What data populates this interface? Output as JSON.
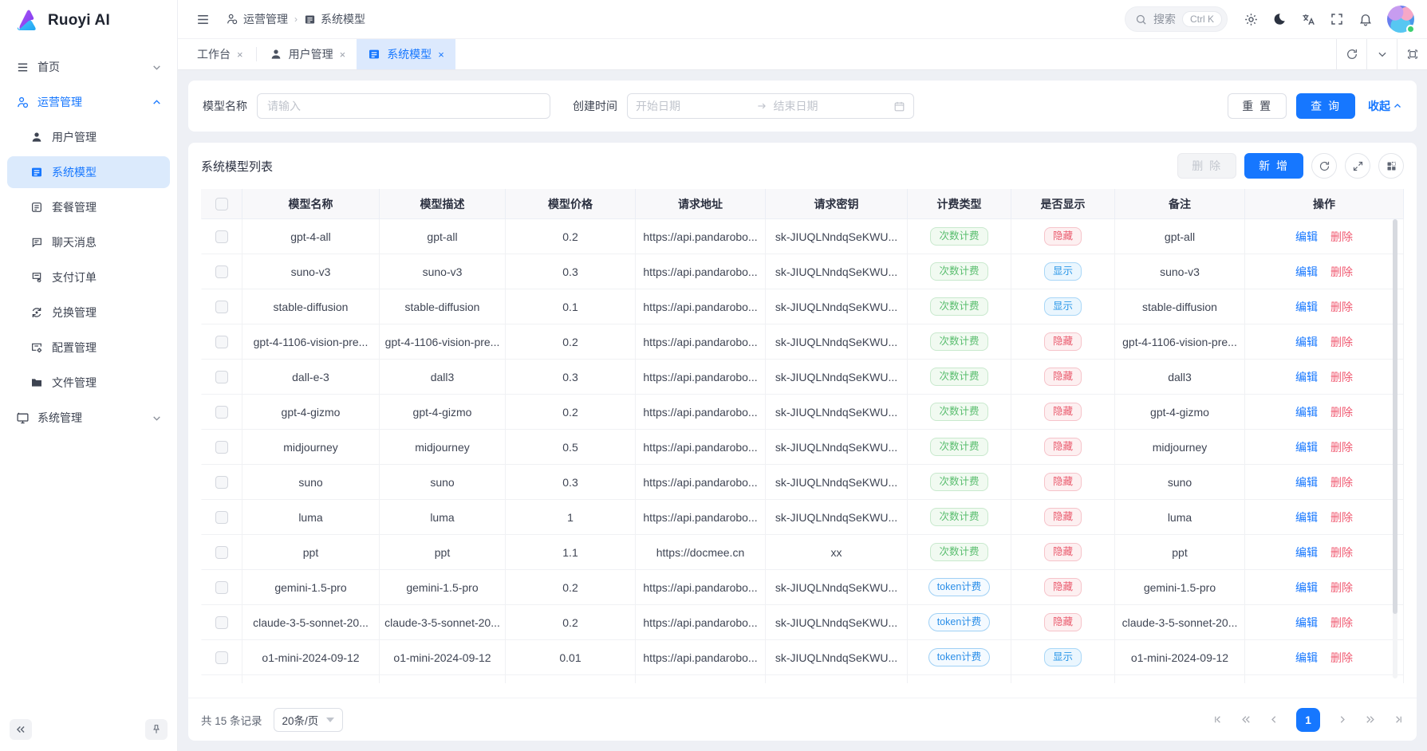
{
  "app": {
    "logo_text": "Ruoyi AI"
  },
  "colors": {
    "primary": "#1677ff",
    "badge_green": "#58bd6d",
    "badge_red": "#ea5b6e",
    "badge_blue": "#2a97e8"
  },
  "header": {
    "breadcrumb": [
      {
        "label": "运营管理",
        "icon": "user-gear-icon"
      },
      {
        "label": "系统模型",
        "icon": "list-icon"
      }
    ],
    "search": {
      "label": "搜索",
      "shortcut": "Ctrl K"
    }
  },
  "tabs": [
    {
      "label": "工作台",
      "icon": null,
      "active": false
    },
    {
      "label": "用户管理",
      "icon": "user-icon",
      "active": false
    },
    {
      "label": "系统模型",
      "icon": "list-icon",
      "active": true
    }
  ],
  "sidebar": {
    "items": [
      {
        "label": "首页",
        "icon": "menu-lines-icon",
        "level": 1,
        "chevron": "down",
        "state": "normal"
      },
      {
        "label": "运营管理",
        "icon": "user-gear-icon",
        "level": 1,
        "chevron": "up",
        "state": "blue"
      },
      {
        "label": "用户管理",
        "icon": "user-icon",
        "level": 2,
        "chevron": null,
        "state": "normal"
      },
      {
        "label": "系统模型",
        "icon": "list-icon",
        "level": 2,
        "chevron": null,
        "state": "active"
      },
      {
        "label": "套餐管理",
        "icon": "package-icon",
        "level": 2,
        "chevron": null,
        "state": "normal"
      },
      {
        "label": "聊天消息",
        "icon": "chat-icon",
        "level": 2,
        "chevron": null,
        "state": "normal"
      },
      {
        "label": "支付订单",
        "icon": "receipt-icon",
        "level": 2,
        "chevron": null,
        "state": "normal"
      },
      {
        "label": "兑换管理",
        "icon": "exchange-icon",
        "level": 2,
        "chevron": null,
        "state": "normal"
      },
      {
        "label": "配置管理",
        "icon": "config-icon",
        "level": 2,
        "chevron": null,
        "state": "normal"
      },
      {
        "label": "文件管理",
        "icon": "folder-icon",
        "level": 2,
        "chevron": null,
        "state": "normal"
      },
      {
        "label": "系统管理",
        "icon": "monitor-icon",
        "level": 1,
        "chevron": "down",
        "state": "normal"
      }
    ]
  },
  "filter": {
    "model_name_label": "模型名称",
    "model_name_placeholder": "请输入",
    "create_time_label": "创建时间",
    "start_placeholder": "开始日期",
    "end_placeholder": "结束日期",
    "reset_label": "重 置",
    "search_label": "查 询",
    "collapse_label": "收起"
  },
  "table": {
    "title": "系统模型列表",
    "delete_button": "删 除",
    "add_button": "新 增",
    "columns": [
      "模型名称",
      "模型描述",
      "模型价格",
      "请求地址",
      "请求密钥",
      "计费类型",
      "是否显示",
      "备注",
      "操作"
    ],
    "edit_label": "编辑",
    "delete_label": "删除",
    "rows": [
      {
        "name": "gpt-4-all",
        "desc": "gpt-all",
        "price": "0.2",
        "url": "https://api.pandarobo...",
        "key": "sk-JIUQLNndqSeKWU...",
        "billing": "次数计费",
        "billing_style": "green",
        "visible": "隐藏",
        "visible_style": "red",
        "remark": "gpt-all"
      },
      {
        "name": "suno-v3",
        "desc": "suno-v3",
        "price": "0.3",
        "url": "https://api.pandarobo...",
        "key": "sk-JIUQLNndqSeKWU...",
        "billing": "次数计费",
        "billing_style": "green",
        "visible": "显示",
        "visible_style": "blue",
        "remark": "suno-v3"
      },
      {
        "name": "stable-diffusion",
        "desc": "stable-diffusion",
        "price": "0.1",
        "url": "https://api.pandarobo...",
        "key": "sk-JIUQLNndqSeKWU...",
        "billing": "次数计费",
        "billing_style": "green",
        "visible": "显示",
        "visible_style": "blue",
        "remark": "stable-diffusion"
      },
      {
        "name": "gpt-4-1106-vision-pre...",
        "desc": "gpt-4-1106-vision-pre...",
        "price": "0.2",
        "url": "https://api.pandarobo...",
        "key": "sk-JIUQLNndqSeKWU...",
        "billing": "次数计费",
        "billing_style": "green",
        "visible": "隐藏",
        "visible_style": "red",
        "remark": "gpt-4-1106-vision-pre..."
      },
      {
        "name": "dall-e-3",
        "desc": "dall3",
        "price": "0.3",
        "url": "https://api.pandarobo...",
        "key": "sk-JIUQLNndqSeKWU...",
        "billing": "次数计费",
        "billing_style": "green",
        "visible": "隐藏",
        "visible_style": "red",
        "remark": "dall3"
      },
      {
        "name": "gpt-4-gizmo",
        "desc": "gpt-4-gizmo",
        "price": "0.2",
        "url": "https://api.pandarobo...",
        "key": "sk-JIUQLNndqSeKWU...",
        "billing": "次数计费",
        "billing_style": "green",
        "visible": "隐藏",
        "visible_style": "red",
        "remark": "gpt-4-gizmo"
      },
      {
        "name": "midjourney",
        "desc": "midjourney",
        "price": "0.5",
        "url": "https://api.pandarobo...",
        "key": "sk-JIUQLNndqSeKWU...",
        "billing": "次数计费",
        "billing_style": "green",
        "visible": "隐藏",
        "visible_style": "red",
        "remark": "midjourney"
      },
      {
        "name": "suno",
        "desc": "suno",
        "price": "0.3",
        "url": "https://api.pandarobo...",
        "key": "sk-JIUQLNndqSeKWU...",
        "billing": "次数计费",
        "billing_style": "green",
        "visible": "隐藏",
        "visible_style": "red",
        "remark": "suno"
      },
      {
        "name": "luma",
        "desc": "luma",
        "price": "1",
        "url": "https://api.pandarobo...",
        "key": "sk-JIUQLNndqSeKWU...",
        "billing": "次数计费",
        "billing_style": "green",
        "visible": "隐藏",
        "visible_style": "red",
        "remark": "luma"
      },
      {
        "name": "ppt",
        "desc": "ppt",
        "price": "1.1",
        "url": "https://docmee.cn",
        "key": "xx",
        "billing": "次数计费",
        "billing_style": "green",
        "visible": "隐藏",
        "visible_style": "red",
        "remark": "ppt"
      },
      {
        "name": "gemini-1.5-pro",
        "desc": "gemini-1.5-pro",
        "price": "0.2",
        "url": "https://api.pandarobo...",
        "key": "sk-JIUQLNndqSeKWU...",
        "billing": "token计费",
        "billing_style": "bluepill",
        "visible": "隐藏",
        "visible_style": "red",
        "remark": "gemini-1.5-pro"
      },
      {
        "name": "claude-3-5-sonnet-20...",
        "desc": "claude-3-5-sonnet-20...",
        "price": "0.2",
        "url": "https://api.pandarobo...",
        "key": "sk-JIUQLNndqSeKWU...",
        "billing": "token计费",
        "billing_style": "bluepill",
        "visible": "隐藏",
        "visible_style": "red",
        "remark": "claude-3-5-sonnet-20..."
      },
      {
        "name": "o1-mini-2024-09-12",
        "desc": "o1-mini-2024-09-12",
        "price": "0.01",
        "url": "https://api.pandarobo...",
        "key": "sk-JIUQLNndqSeKWU...",
        "billing": "token计费",
        "billing_style": "bluepill",
        "visible": "显示",
        "visible_style": "blue",
        "remark": "o1-mini-2024-09-12"
      }
    ]
  },
  "pagination": {
    "total_text": "共 15 条记录",
    "page_size": "20条/页",
    "current_page": "1"
  }
}
